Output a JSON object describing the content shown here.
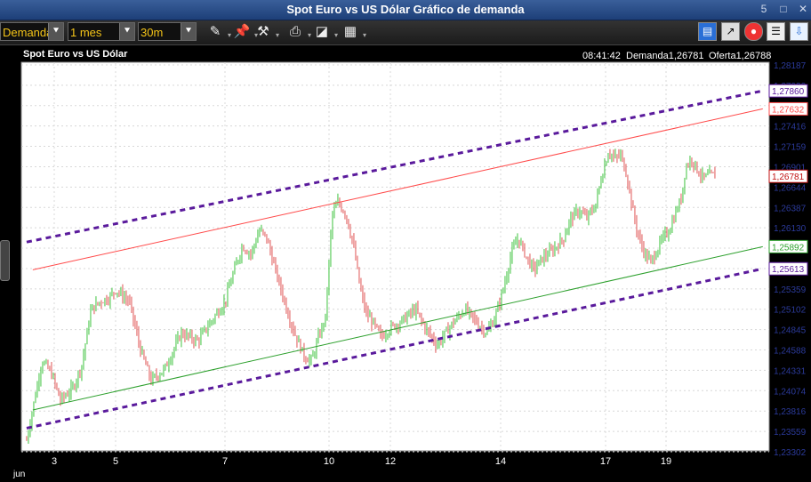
{
  "window": {
    "title": "Spot Euro vs US Dólar Gráfico de demanda",
    "buttons": [
      "5",
      "□",
      "✕"
    ]
  },
  "toolbar": {
    "price_type": "Demanda",
    "period": "1 mes",
    "interval": "30m"
  },
  "chart_header": {
    "title": "Spot Euro vs US Dólar",
    "time": "08:41:42",
    "bid": "Demanda1,26781",
    "ask": "Oferta1,26788"
  },
  "icons": {
    "toolbar": [
      "pencil-icon",
      "pin-icon",
      "tools-icon",
      "print-icon",
      "chart-type-icon",
      "grid-icon"
    ],
    "right": [
      "layout-icon",
      "indicator-icon",
      "alert-icon",
      "notes-icon",
      "export-icon"
    ]
  },
  "colors": {
    "bullish": "#3fc43f",
    "bearish": "#e05555",
    "channel": "#5a1a9c",
    "red_line": "#ff4a4a",
    "green_line": "#2da02d",
    "plot_bg": "#ffffff",
    "price_text": "#2b3a9a"
  },
  "chart_data": {
    "type": "candlestick",
    "title": "Spot Euro vs US Dólar",
    "yaxis_labels": [
      "1,28187",
      "1,27930",
      "1,27673",
      "1,27416",
      "1,27159",
      "1,26901",
      "1,26644",
      "1,26387",
      "1,26130",
      "1,25873",
      "1,25616",
      "1,25359",
      "1,25102",
      "1,24845",
      "1,24588",
      "1,24331",
      "1,24074",
      "1,23816",
      "1,23559",
      "1,23302"
    ],
    "ylim": [
      1.23302,
      1.28187
    ],
    "x_ticks": [
      {
        "label": "3",
        "day": 3
      },
      {
        "label": "5",
        "day": 5
      },
      {
        "label": "7",
        "day": 7
      },
      {
        "label": "10",
        "day": 10
      },
      {
        "label": "12",
        "day": 12
      },
      {
        "label": "14",
        "day": 14
      },
      {
        "label": "17",
        "day": 17
      },
      {
        "label": "19",
        "day": 19
      }
    ],
    "x_sub_label": "jun",
    "grid": true,
    "price_path": [
      [
        2.1,
        1.2345
      ],
      [
        2.35,
        1.2395
      ],
      [
        2.6,
        1.2445
      ],
      [
        2.9,
        1.243
      ],
      [
        3.2,
        1.2395
      ],
      [
        3.6,
        1.241
      ],
      [
        3.9,
        1.244
      ],
      [
        4.2,
        1.251
      ],
      [
        4.5,
        1.252
      ],
      [
        4.8,
        1.2525
      ],
      [
        5.0,
        1.2535
      ],
      [
        5.25,
        1.252
      ],
      [
        5.45,
        1.246
      ],
      [
        5.65,
        1.242
      ],
      [
        5.9,
        1.2435
      ],
      [
        6.2,
        1.248
      ],
      [
        6.5,
        1.247
      ],
      [
        6.8,
        1.25
      ],
      [
        7.0,
        1.252
      ],
      [
        7.2,
        1.255
      ],
      [
        7.5,
        1.259
      ],
      [
        7.75,
        1.258
      ],
      [
        8.0,
        1.261
      ],
      [
        8.2,
        1.26
      ],
      [
        8.45,
        1.256
      ],
      [
        8.65,
        1.253
      ],
      [
        8.85,
        1.25
      ],
      [
        9.05,
        1.2475
      ],
      [
        9.3,
        1.245
      ],
      [
        9.5,
        1.2445
      ],
      [
        9.7,
        1.2475
      ],
      [
        9.9,
        1.25
      ],
      [
        10.1,
        1.263
      ],
      [
        10.3,
        1.2645
      ],
      [
        10.55,
        1.263
      ],
      [
        10.8,
        1.259
      ],
      [
        11.0,
        1.254
      ],
      [
        11.2,
        1.2505
      ],
      [
        11.4,
        1.2495
      ],
      [
        11.7,
        1.2475
      ],
      [
        11.95,
        1.2485
      ],
      [
        12.2,
        1.2495
      ],
      [
        12.45,
        1.251
      ],
      [
        12.65,
        1.2485
      ],
      [
        12.85,
        1.2465
      ],
      [
        13.1,
        1.249
      ],
      [
        13.35,
        1.251
      ],
      [
        13.55,
        1.2495
      ],
      [
        13.75,
        1.248
      ],
      [
        13.9,
        1.25
      ],
      [
        14.1,
        1.254
      ],
      [
        14.3,
        1.258
      ],
      [
        14.5,
        1.26
      ],
      [
        14.75,
        1.2575
      ],
      [
        14.95,
        1.256
      ],
      [
        15.2,
        1.2575
      ],
      [
        15.5,
        1.2585
      ],
      [
        15.8,
        1.26
      ],
      [
        16.0,
        1.2625
      ],
      [
        16.25,
        1.2635
      ],
      [
        16.45,
        1.2625
      ],
      [
        16.7,
        1.264
      ],
      [
        16.9,
        1.268
      ],
      [
        17.1,
        1.271
      ],
      [
        17.3,
        1.27
      ],
      [
        17.5,
        1.2705
      ],
      [
        17.7,
        1.268
      ],
      [
        17.9,
        1.2635
      ],
      [
        18.1,
        1.26
      ],
      [
        18.3,
        1.258
      ],
      [
        18.5,
        1.257
      ],
      [
        18.7,
        1.2585
      ],
      [
        18.9,
        1.26
      ],
      [
        19.1,
        1.261
      ],
      [
        19.3,
        1.263
      ],
      [
        19.5,
        1.265
      ],
      [
        19.65,
        1.269
      ],
      [
        19.85,
        1.27
      ],
      [
        20.05,
        1.2685
      ],
      [
        20.25,
        1.2675
      ],
      [
        20.45,
        1.268
      ],
      [
        20.65,
        1.2678
      ]
    ],
    "lines": [
      {
        "kind": "channel-upper",
        "style": "dashed",
        "from": [
          2.1,
          1.2595
        ],
        "to": [
          22.2,
          1.2786
        ]
      },
      {
        "kind": "channel-lower",
        "style": "dashed",
        "from": [
          2.1,
          1.236
        ],
        "to": [
          22.2,
          1.25613
        ]
      },
      {
        "kind": "resistance",
        "style": "solid",
        "from": [
          2.3,
          1.256
        ],
        "to": [
          22.2,
          1.27632
        ]
      },
      {
        "kind": "support",
        "style": "solid",
        "from": [
          2.3,
          1.2383
        ],
        "to": [
          22.2,
          1.25892
        ]
      }
    ],
    "price_tags": [
      {
        "value": "1,27860",
        "kind": "channel"
      },
      {
        "value": "1,27632",
        "kind": "resistance"
      },
      {
        "value": "1,26781",
        "kind": "current"
      },
      {
        "value": "1,25892",
        "kind": "support"
      },
      {
        "value": "1,25613",
        "kind": "channel"
      }
    ]
  }
}
